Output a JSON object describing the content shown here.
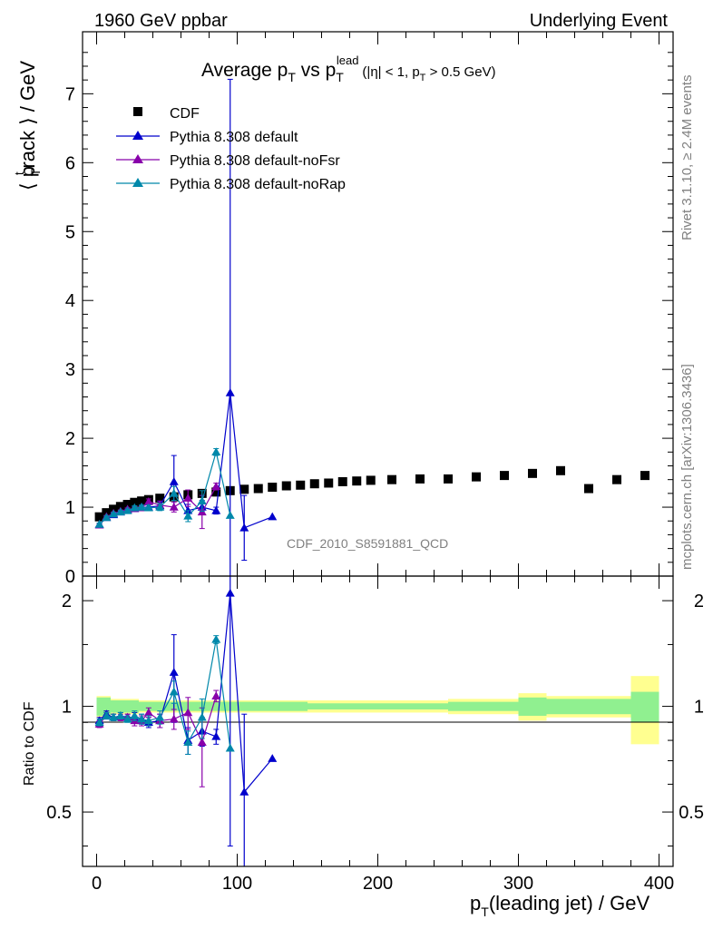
{
  "header": {
    "left": "1960 GeV ppbar",
    "right": "Underlying Event"
  },
  "side_text": {
    "top": "Rivet 3.1.10, ≥ 2.4M events",
    "bottom": "mcplots.cern.ch [arXiv:1306.3436]"
  },
  "watermark": "CDF_2010_S8591881_QCD",
  "colors": {
    "cdf": "#000000",
    "default": "#0000cc",
    "noFsr": "#8800aa",
    "noRap": "#0088aa",
    "band_inner": "#90f090",
    "band_outer": "#ffff90"
  },
  "chart_data": [
    {
      "type": "scatter",
      "title_parts": {
        "avg": "Average p",
        "sub1": "T",
        "vs": " vs p",
        "sub2": "T",
        "sup": "lead",
        "tail": "(|η| < 1, p",
        "sub3": "T",
        "tail2": " > 0.5 GeV)"
      },
      "ylabel": "⟨ p_T^track ⟩ / GeV",
      "ylabel_parts": {
        "open": "⟨ p",
        "sup": "t",
        "sub": "T",
        "rest": "rack ⟩ / GeV"
      },
      "xlim": [
        -10,
        410
      ],
      "ylim": [
        0,
        7.9
      ],
      "yticks": [
        "0",
        "1",
        "2",
        "3",
        "4",
        "5",
        "6",
        "7"
      ],
      "legend": [
        "CDF",
        "Pythia 8.308 default",
        "Pythia 8.308 default-noFsr",
        "Pythia 8.308 default-noRap"
      ],
      "legend_position": "top-left",
      "series": [
        {
          "name": "CDF",
          "marker": "square",
          "x": [
            2,
            7,
            12,
            17,
            22,
            27,
            32,
            37,
            45,
            55,
            65,
            75,
            85,
            95,
            105,
            115,
            125,
            135,
            145,
            155,
            165,
            175,
            185,
            195,
            210,
            230,
            250,
            270,
            290,
            310,
            330,
            350,
            370,
            390
          ],
          "y": [
            0.86,
            0.92,
            0.97,
            1.01,
            1.04,
            1.07,
            1.09,
            1.11,
            1.13,
            1.15,
            1.18,
            1.2,
            1.22,
            1.24,
            1.26,
            1.27,
            1.29,
            1.31,
            1.32,
            1.34,
            1.35,
            1.37,
            1.38,
            1.39,
            1.4,
            1.41,
            1.41,
            1.44,
            1.46,
            1.49,
            1.53,
            1.27,
            1.4,
            1.46
          ]
        },
        {
          "name": "Pythia 8.308 default",
          "marker": "triangle",
          "x": [
            2,
            7,
            12,
            17,
            22,
            27,
            32,
            37,
            45,
            55,
            65,
            75,
            85,
            95,
            105,
            125
          ],
          "y": [
            0.75,
            0.85,
            0.89,
            0.93,
            0.96,
            0.98,
            1.0,
            1.0,
            1.02,
            1.37,
            0.95,
            1.0,
            0.95,
            2.66,
            0.7,
            0.86
          ],
          "err": [
            0.02,
            0.02,
            0.02,
            0.02,
            0.02,
            0.03,
            0.03,
            0.04,
            0.06,
            0.38,
            0.09,
            0.1,
            0.05,
            4.55,
            0.47,
            0
          ]
        },
        {
          "name": "Pythia 8.308 default-noFsr",
          "marker": "triangle",
          "x": [
            2,
            7,
            12,
            17,
            22,
            27,
            32,
            37,
            45,
            55,
            65,
            75,
            85
          ],
          "y": [
            0.74,
            0.86,
            0.91,
            0.94,
            0.97,
            0.98,
            0.99,
            1.08,
            1.03,
            1.0,
            1.13,
            0.93,
            1.3
          ],
          "err": [
            0.02,
            0.02,
            0.02,
            0.02,
            0.02,
            0.03,
            0.03,
            0.04,
            0.06,
            0.07,
            0.12,
            0.24,
            0.05
          ]
        },
        {
          "name": "Pythia 8.308 default-noRap",
          "marker": "triangle",
          "x": [
            2,
            7,
            12,
            17,
            22,
            27,
            32,
            37,
            45,
            55,
            65,
            75,
            85,
            95
          ],
          "y": [
            0.75,
            0.85,
            0.9,
            0.93,
            0.95,
            0.99,
            1.0,
            0.99,
            1.0,
            1.2,
            0.87,
            1.09,
            1.8,
            0.88
          ],
          "err": [
            0.02,
            0.02,
            0.02,
            0.02,
            0.02,
            0.03,
            0.03,
            0.04,
            0.05,
            0.1,
            0.08,
            0.15,
            0.05,
            0
          ]
        }
      ]
    },
    {
      "type": "scatter",
      "ylabel": "Ratio to CDF",
      "xlabel_parts": {
        "p": "p",
        "sub": "T",
        "rest": "(leading jet) / GeV"
      },
      "xlim": [
        -10,
        410
      ],
      "ylim": [
        0.35,
        2.35
      ],
      "yticks": [
        "0.5",
        "1",
        "2"
      ],
      "xticks": [
        "0",
        "100",
        "200",
        "300",
        "400"
      ],
      "bands": {
        "x_edges": [
          0,
          10,
          30,
          50,
          150,
          250,
          300,
          320,
          340,
          360,
          380,
          400
        ],
        "inner": [
          0.06,
          0.04,
          0.03,
          0.03,
          0.02,
          0.03,
          0.06,
          0.05,
          0.05,
          0.05,
          0.1
        ],
        "outer": [
          0.07,
          0.05,
          0.04,
          0.04,
          0.04,
          0.05,
          0.09,
          0.07,
          0.07,
          0.07,
          0.22
        ]
      },
      "series": [
        {
          "name": "Pythia 8.308 default",
          "x": [
            2,
            7,
            12,
            17,
            22,
            27,
            32,
            37,
            45,
            55,
            65,
            75,
            85,
            95,
            105,
            125
          ],
          "y": [
            0.91,
            0.95,
            0.93,
            0.94,
            0.93,
            0.93,
            0.92,
            0.9,
            0.91,
            1.25,
            0.8,
            0.85,
            0.82,
            2.1,
            0.57,
            0.71
          ],
          "err": [
            0.02,
            0.02,
            0.02,
            0.02,
            0.02,
            0.03,
            0.03,
            0.03,
            0.04,
            0.35,
            0.07,
            0.08,
            0.04,
            1.7,
            0.38,
            0
          ]
        },
        {
          "name": "Pythia 8.308 default-noFsr",
          "x": [
            2,
            7,
            12,
            17,
            22,
            27,
            32,
            37,
            45,
            55,
            65,
            75,
            85
          ],
          "y": [
            0.89,
            0.94,
            0.93,
            0.93,
            0.93,
            0.91,
            0.91,
            0.96,
            0.91,
            0.92,
            0.96,
            0.79,
            1.07
          ],
          "err": [
            0.02,
            0.02,
            0.02,
            0.02,
            0.02,
            0.03,
            0.03,
            0.03,
            0.04,
            0.06,
            0.1,
            0.2,
            0.04
          ]
        },
        {
          "name": "Pythia 8.308 default-noRap",
          "x": [
            2,
            7,
            12,
            17,
            22,
            27,
            32,
            37,
            45,
            55,
            65,
            75,
            85,
            95
          ],
          "y": [
            0.9,
            0.94,
            0.93,
            0.94,
            0.92,
            0.94,
            0.92,
            0.91,
            0.93,
            1.1,
            0.79,
            0.93,
            1.55,
            0.76
          ],
          "err": [
            0.02,
            0.02,
            0.02,
            0.02,
            0.02,
            0.03,
            0.03,
            0.03,
            0.04,
            0.08,
            0.06,
            0.12,
            0.04,
            0
          ]
        }
      ]
    }
  ]
}
